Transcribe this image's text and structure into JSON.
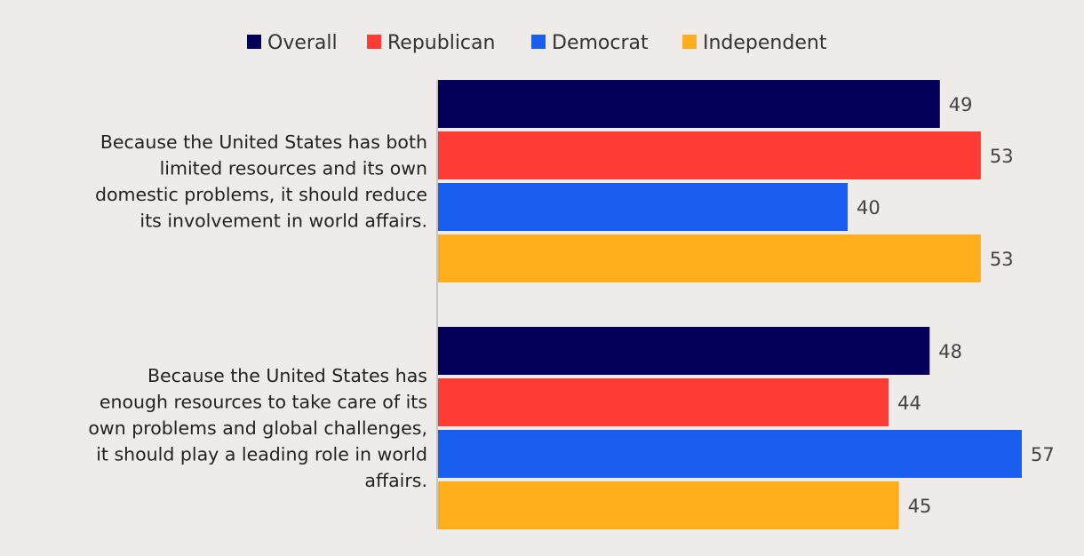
{
  "chart_data": {
    "type": "bar",
    "orientation": "horizontal",
    "title": "",
    "xlabel": "",
    "ylabel": "",
    "xlim": [
      0,
      57
    ],
    "grid": false,
    "legend_position": "top-center",
    "categories": [
      {
        "lines": [
          "Because the United States has both",
          "limited resources and its own",
          "domestic problems, it should reduce",
          "its involvement in world affairs."
        ]
      },
      {
        "lines": [
          "Because the United States has",
          "enough resources to take care of its",
          "own problems and global challenges,",
          "it should play a leading role in world",
          "affairs."
        ]
      }
    ],
    "series": [
      {
        "name": "Overall",
        "color": "#03005a",
        "values": [
          49,
          48
        ]
      },
      {
        "name": "Republican",
        "color": "#fe3c35",
        "values": [
          53,
          44
        ]
      },
      {
        "name": "Democrat",
        "color": "#1a5ef0",
        "values": [
          40,
          57
        ]
      },
      {
        "name": "Independent",
        "color": "#fdae1a",
        "values": [
          53,
          45
        ]
      }
    ]
  }
}
